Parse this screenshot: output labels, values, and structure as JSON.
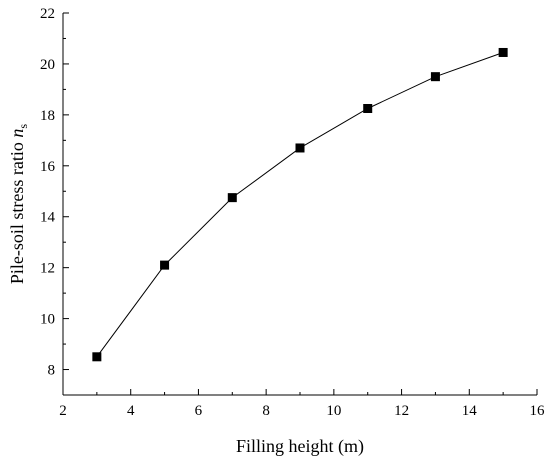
{
  "chart_data": {
    "type": "line",
    "title": "",
    "xlabel": "Filling height (m)",
    "ylabel": {
      "text": "Pile-soil stress ratio ",
      "symbol": "n",
      "subscript": "s"
    },
    "xlim": [
      2,
      16
    ],
    "ylim": [
      7,
      22
    ],
    "x_ticks": [
      2,
      4,
      6,
      8,
      10,
      12,
      14,
      16
    ],
    "y_ticks": [
      8,
      10,
      12,
      14,
      16,
      18,
      20,
      22
    ],
    "x_tick_labels": [
      "2",
      "4",
      "6",
      "8",
      "10",
      "12",
      "14",
      "16"
    ],
    "y_tick_labels": [
      "8",
      "10",
      "12",
      "14",
      "16",
      "18",
      "20",
      "22"
    ],
    "grid": false,
    "legend": "none",
    "series": [
      {
        "marker": "square",
        "color": "#000000",
        "x": [
          3,
          5,
          7,
          9,
          11,
          13,
          15
        ],
        "y": [
          8.5,
          12.1,
          14.75,
          16.7,
          18.25,
          19.5,
          20.45
        ]
      }
    ]
  }
}
